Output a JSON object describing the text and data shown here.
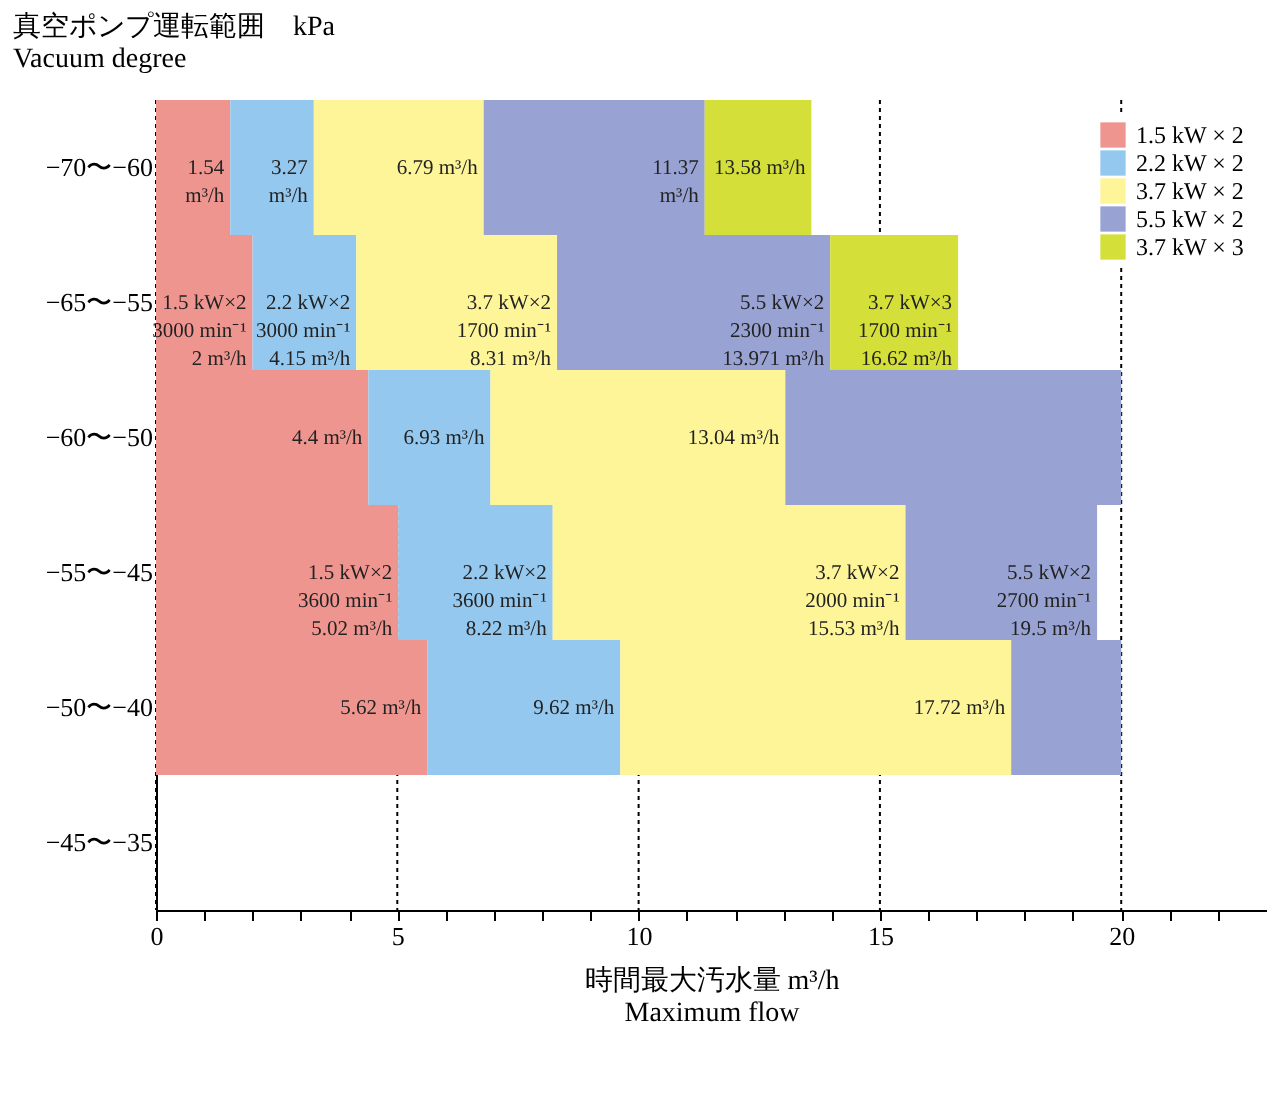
{
  "chart_data": {
    "type": "bar",
    "orientation": "horizontal",
    "stacked": true,
    "ylabel": "真空ポンプ運転範囲　kPa\nVacuum degree",
    "xlabel": "時間最大汚水量 m³/h\nMaximum flow",
    "categories": [
      "−70〜−60",
      "−65〜−55",
      "−60〜−50",
      "−55〜−45",
      "−50〜−40",
      "−45〜−35"
    ],
    "series": [
      {
        "name": "1.5 kW × 2",
        "color": "#ef9590",
        "values": [
          1.54,
          2,
          4.4,
          5.02,
          5.62,
          null
        ]
      },
      {
        "name": "2.2 kW × 2",
        "color": "#94c8ee",
        "values": [
          1.73,
          2.15,
          2.53,
          3.2,
          4,
          null
        ]
      },
      {
        "name": "3.7 kW × 2",
        "color": "#fdf598",
        "values": [
          3.52,
          4.16,
          6.11,
          7.31,
          8.1,
          null
        ]
      },
      {
        "name": "5.5 kW × 2",
        "color": "#99a3d3",
        "values": [
          4.58,
          5.66,
          6.96,
          3.97,
          2.28,
          null
        ]
      },
      {
        "name": "3.7 kW × 3",
        "color": "#d4df3a",
        "values": [
          2.21,
          2.65,
          null,
          null,
          null,
          null
        ]
      }
    ],
    "xlim": [
      0,
      23
    ],
    "xticks": [
      0,
      {
        "value": 1,
        "label": null
      },
      {
        "value": 2,
        "label": null
      },
      {
        "value": 3,
        "label": null
      },
      {
        "value": 4,
        "label": null
      },
      5,
      {
        "value": 6,
        "label": null
      },
      {
        "value": 7,
        "label": null
      },
      {
        "value": 8,
        "label": null
      },
      {
        "value": 9,
        "label": null
      },
      10,
      {
        "value": 11,
        "label": null
      },
      {
        "value": 12,
        "label": null
      },
      {
        "value": 13,
        "label": null
      },
      {
        "value": 14,
        "label": null
      },
      15,
      {
        "value": 16,
        "label": null
      },
      {
        "value": 17,
        "label": null
      },
      {
        "value": 18,
        "label": null
      },
      {
        "value": 19,
        "label": null
      },
      20,
      {
        "value": 21,
        "label": null
      },
      {
        "value": 22,
        "label": null
      }
    ],
    "grid": "x",
    "line_style": "dotted",
    "legend": "top right",
    "annotations": [
      {
        "text": "1.54\nm³/h",
        "x": 1.54,
        "y": "−70〜−60"
      },
      {
        "text": "3.27\nm³/h",
        "x": 3.27,
        "y": "−70〜−60"
      },
      {
        "text": "6.79 m³/h",
        "x": 6.79,
        "y": "−70〜−60"
      },
      {
        "text": "11.37\nm³/h",
        "x": 11.37,
        "y": "−70〜−60"
      },
      {
        "text": "13.58 m³/h",
        "x": 13.58,
        "y": "−70〜−60"
      },
      {
        "text": "1.5 kW×2\n3000 min⁻¹\n2 m³/h",
        "x": 2,
        "y": "−65〜−55"
      },
      {
        "text": "2.2 kW×2\n3000 min⁻¹\n4.15 m³/h",
        "x": 4.15,
        "y": "−65〜−55"
      },
      {
        "text": "3.7 kW×2\n1700 min⁻¹\n8.31 m³/h",
        "x": 8.31,
        "y": "−65〜−55"
      },
      {
        "text": "5.5 kW×2\n2300 min⁻¹\n13.971 m³/h",
        "x": 13.971,
        "y": "−65〜−55"
      },
      {
        "text": "3.7 kW×3\n1700 min⁻¹\n16.62 m³/h",
        "x": 16.62,
        "y": "−65〜−55"
      },
      {
        "text": "4.4 m³/h",
        "x": 4.4,
        "y": "−60〜−50"
      },
      {
        "text": "6.93 m³/h",
        "x": 6.93,
        "y": "−60〜−50"
      },
      {
        "text": "13.04 m³/h",
        "x": 13.04,
        "y": "−60〜−50"
      },
      {
        "text": "1.5 kW×2\n3600 min⁻¹\n5.02 m³/h",
        "x": 5.02,
        "y": "−55〜−45"
      },
      {
        "text": "2.2 kW×2\n3600 min⁻¹\n8.22 m³/h",
        "x": 8.22,
        "y": "−55〜−45"
      },
      {
        "text": "3.7 kW×2\n2000 min⁻¹\n15.53 m³/h",
        "x": 15.53,
        "y": "−55〜−45"
      },
      {
        "text": "5.5 kW×2\n2700 min⁻¹\n19.5 m³/h",
        "x": 19.5,
        "y": "−55〜−45"
      },
      {
        "text": "5.62 m³/h",
        "x": 5.62,
        "y": "−50〜−40"
      },
      {
        "text": "9.62 m³/h",
        "x": 9.62,
        "y": "−50〜−40"
      },
      {
        "text": "17.72 m³/h",
        "x": 17.72,
        "y": "−50〜−40"
      }
    ]
  }
}
